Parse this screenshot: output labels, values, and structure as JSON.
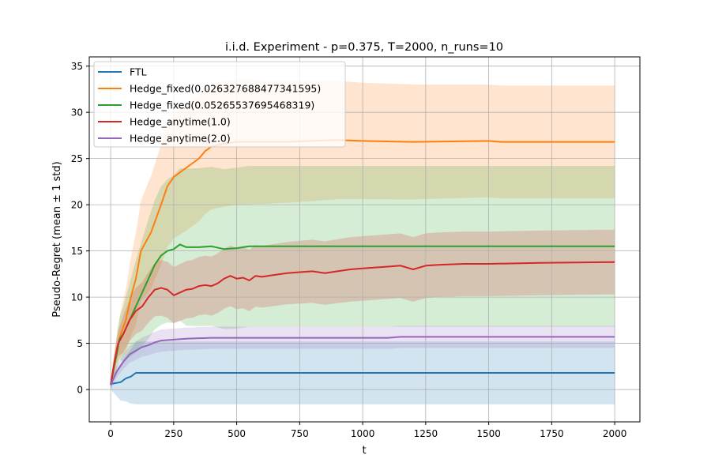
{
  "chart_data": {
    "type": "line",
    "title": "i.i.d. Experiment - p=0.375, T=2000, n_runs=10",
    "xlabel": "t",
    "ylabel": "Pseudo-Regret (mean ± 1 std)",
    "xlim": [
      -85,
      2100
    ],
    "ylim": [
      -3.5,
      36
    ],
    "xticks": [
      0,
      250,
      500,
      750,
      1000,
      1250,
      1500,
      1750,
      2000
    ],
    "yticks": [
      0,
      5,
      10,
      15,
      20,
      25,
      30,
      35
    ],
    "grid": true,
    "legend_position": "upper-left",
    "band": "mean ± 1 std",
    "series": [
      {
        "name": "FTL",
        "color": "#1f77b4",
        "points": [
          [
            0,
            0.6
          ],
          [
            20,
            0.7
          ],
          [
            40,
            0.8
          ],
          [
            60,
            1.2
          ],
          [
            80,
            1.4
          ],
          [
            100,
            1.8
          ],
          [
            150,
            1.8
          ],
          [
            500,
            1.8
          ],
          [
            1000,
            1.8
          ],
          [
            1500,
            1.8
          ],
          [
            2000,
            1.8
          ]
        ],
        "std": [
          [
            0,
            0.6
          ],
          [
            40,
            2.0
          ],
          [
            100,
            3.4
          ],
          [
            150,
            3.4
          ],
          [
            2000,
            3.4
          ]
        ]
      },
      {
        "name": "Hedge_fixed(0.026327688477341595)",
        "color": "#ff7f0e",
        "points": [
          [
            0,
            0.5
          ],
          [
            10,
            2.0
          ],
          [
            25,
            4.5
          ],
          [
            40,
            6.0
          ],
          [
            60,
            7.5
          ],
          [
            80,
            10.0
          ],
          [
            100,
            12.0
          ],
          [
            120,
            15.0
          ],
          [
            140,
            16.0
          ],
          [
            160,
            17.0
          ],
          [
            180,
            18.5
          ],
          [
            200,
            20.0
          ],
          [
            225,
            22.0
          ],
          [
            250,
            23.0
          ],
          [
            275,
            23.5
          ],
          [
            300,
            24.0
          ],
          [
            325,
            24.5
          ],
          [
            350,
            25.0
          ],
          [
            375,
            25.8
          ],
          [
            400,
            26.3
          ],
          [
            450,
            26.6
          ],
          [
            500,
            26.8
          ],
          [
            600,
            26.8
          ],
          [
            700,
            26.8
          ],
          [
            800,
            26.9
          ],
          [
            900,
            27.0
          ],
          [
            1000,
            26.9
          ],
          [
            1200,
            26.8
          ],
          [
            1500,
            26.9
          ],
          [
            1550,
            26.8
          ],
          [
            2000,
            26.8
          ]
        ],
        "std": [
          [
            0,
            0.5
          ],
          [
            50,
            3.0
          ],
          [
            100,
            5.0
          ],
          [
            150,
            6.0
          ],
          [
            200,
            6.5
          ],
          [
            300,
            6.8
          ],
          [
            500,
            6.8
          ],
          [
            1000,
            6.3
          ],
          [
            1500,
            6.1
          ],
          [
            2000,
            6.1
          ]
        ]
      },
      {
        "name": "Hedge_fixed(0.05265537695468319)",
        "color": "#2ca02c",
        "points": [
          [
            0,
            0.5
          ],
          [
            10,
            2.0
          ],
          [
            25,
            4.0
          ],
          [
            35,
            5.5
          ],
          [
            50,
            6.0
          ],
          [
            75,
            7.5
          ],
          [
            100,
            9.0
          ],
          [
            125,
            10.5
          ],
          [
            150,
            12.0
          ],
          [
            175,
            13.5
          ],
          [
            200,
            14.5
          ],
          [
            225,
            15.0
          ],
          [
            250,
            15.2
          ],
          [
            275,
            15.7
          ],
          [
            300,
            15.4
          ],
          [
            350,
            15.4
          ],
          [
            400,
            15.5
          ],
          [
            450,
            15.2
          ],
          [
            500,
            15.3
          ],
          [
            550,
            15.5
          ],
          [
            700,
            15.5
          ],
          [
            1000,
            15.5
          ],
          [
            1500,
            15.5
          ],
          [
            2000,
            15.5
          ]
        ],
        "std": [
          [
            0,
            0.5
          ],
          [
            50,
            3.0
          ],
          [
            100,
            5.0
          ],
          [
            150,
            6.5
          ],
          [
            200,
            7.5
          ],
          [
            300,
            8.5
          ],
          [
            500,
            8.7
          ],
          [
            1000,
            8.7
          ],
          [
            2000,
            8.7
          ]
        ]
      },
      {
        "name": "Hedge_anytime(1.0)",
        "color": "#d62728",
        "points": [
          [
            0,
            0.5
          ],
          [
            15,
            3.0
          ],
          [
            30,
            5.0
          ],
          [
            50,
            6.0
          ],
          [
            75,
            7.5
          ],
          [
            100,
            8.5
          ],
          [
            125,
            9.0
          ],
          [
            150,
            10.0
          ],
          [
            175,
            10.8
          ],
          [
            200,
            11.0
          ],
          [
            225,
            10.8
          ],
          [
            250,
            10.2
          ],
          [
            275,
            10.5
          ],
          [
            300,
            10.8
          ],
          [
            325,
            10.9
          ],
          [
            350,
            11.2
          ],
          [
            375,
            11.3
          ],
          [
            400,
            11.2
          ],
          [
            425,
            11.5
          ],
          [
            450,
            12.0
          ],
          [
            475,
            12.3
          ],
          [
            500,
            12.0
          ],
          [
            525,
            12.1
          ],
          [
            550,
            11.8
          ],
          [
            575,
            12.3
          ],
          [
            600,
            12.2
          ],
          [
            650,
            12.4
          ],
          [
            700,
            12.6
          ],
          [
            750,
            12.7
          ],
          [
            800,
            12.8
          ],
          [
            850,
            12.6
          ],
          [
            900,
            12.8
          ],
          [
            950,
            13.0
          ],
          [
            1000,
            13.1
          ],
          [
            1100,
            13.3
          ],
          [
            1150,
            13.4
          ],
          [
            1200,
            13.0
          ],
          [
            1250,
            13.4
          ],
          [
            1300,
            13.5
          ],
          [
            1400,
            13.6
          ],
          [
            1500,
            13.6
          ],
          [
            1700,
            13.7
          ],
          [
            2000,
            13.8
          ]
        ],
        "std": [
          [
            0,
            0.5
          ],
          [
            50,
            2.0
          ],
          [
            100,
            2.5
          ],
          [
            200,
            3.0
          ],
          [
            500,
            3.3
          ],
          [
            1000,
            3.5
          ],
          [
            2000,
            3.5
          ]
        ]
      },
      {
        "name": "Hedge_anytime(2.0)",
        "color": "#9467bd",
        "points": [
          [
            0,
            0.5
          ],
          [
            25,
            2.0
          ],
          [
            50,
            3.0
          ],
          [
            75,
            3.8
          ],
          [
            100,
            4.2
          ],
          [
            125,
            4.6
          ],
          [
            150,
            4.8
          ],
          [
            175,
            5.1
          ],
          [
            200,
            5.3
          ],
          [
            250,
            5.4
          ],
          [
            300,
            5.5
          ],
          [
            400,
            5.6
          ],
          [
            600,
            5.6
          ],
          [
            800,
            5.6
          ],
          [
            1000,
            5.6
          ],
          [
            1100,
            5.6
          ],
          [
            1150,
            5.7
          ],
          [
            1500,
            5.7
          ],
          [
            2000,
            5.7
          ]
        ],
        "std": [
          [
            0,
            0.5
          ],
          [
            50,
            0.8
          ],
          [
            100,
            1.0
          ],
          [
            200,
            1.2
          ],
          [
            500,
            1.2
          ],
          [
            1000,
            1.2
          ],
          [
            2000,
            1.2
          ]
        ]
      }
    ]
  }
}
